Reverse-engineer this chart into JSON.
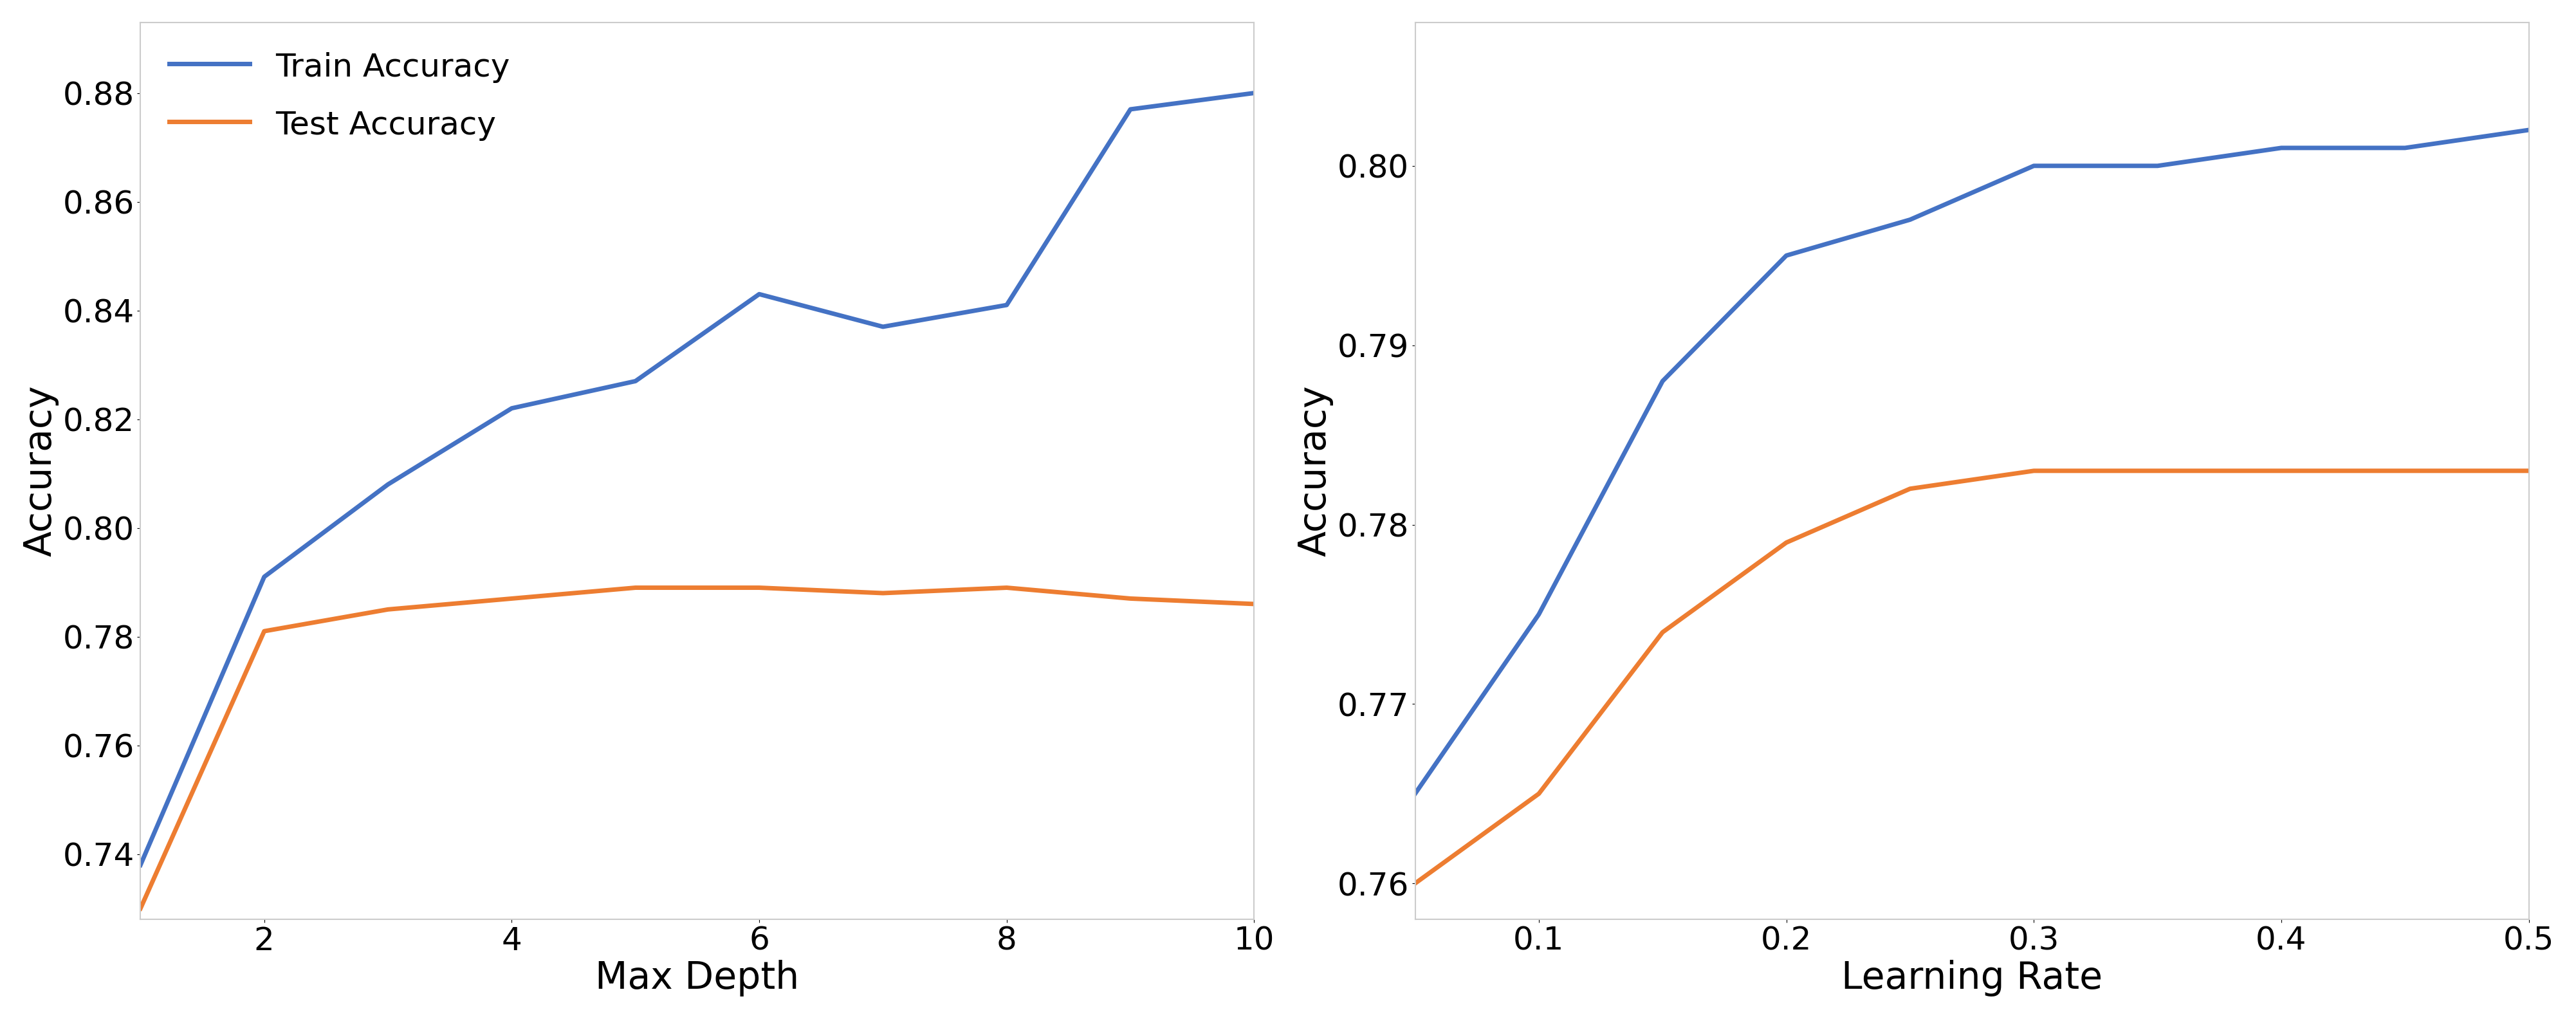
{
  "left": {
    "xlabel": "Max Depth",
    "ylabel": "Accuracy",
    "train_x": [
      1,
      2,
      3,
      4,
      5,
      6,
      7,
      8,
      9,
      10
    ],
    "train_y": [
      0.738,
      0.791,
      0.808,
      0.822,
      0.827,
      0.843,
      0.837,
      0.841,
      0.877,
      0.88
    ],
    "test_x": [
      1,
      2,
      3,
      4,
      5,
      6,
      7,
      8,
      9,
      10
    ],
    "test_y": [
      0.73,
      0.781,
      0.785,
      0.787,
      0.789,
      0.789,
      0.788,
      0.789,
      0.787,
      0.786
    ],
    "ylim": [
      0.728,
      0.893
    ],
    "xlim": [
      1,
      10
    ],
    "yticks": [
      0.74,
      0.76,
      0.78,
      0.8,
      0.82,
      0.84,
      0.86,
      0.88
    ],
    "xticks": [
      2,
      4,
      6,
      8,
      10
    ]
  },
  "right": {
    "xlabel": "Learning Rate",
    "ylabel": "Accuracy",
    "train_x": [
      0.05,
      0.1,
      0.15,
      0.2,
      0.25,
      0.3,
      0.35,
      0.4,
      0.45,
      0.5
    ],
    "train_y": [
      0.765,
      0.775,
      0.788,
      0.795,
      0.797,
      0.8,
      0.8,
      0.801,
      0.801,
      0.802
    ],
    "test_x": [
      0.05,
      0.1,
      0.15,
      0.2,
      0.25,
      0.3,
      0.35,
      0.4,
      0.45,
      0.5
    ],
    "test_y": [
      0.76,
      0.765,
      0.774,
      0.779,
      0.782,
      0.783,
      0.783,
      0.783,
      0.783,
      0.783
    ],
    "ylim": [
      0.758,
      0.808
    ],
    "xlim": [
      0.05,
      0.5
    ],
    "yticks": [
      0.76,
      0.77,
      0.78,
      0.79,
      0.8
    ],
    "xticks": [
      0.1,
      0.2,
      0.3,
      0.4,
      0.5
    ]
  },
  "train_color": "#4472C4",
  "test_color": "#ED7D31",
  "train_label": "Train Accuracy",
  "test_label": "Test Accuracy",
  "linewidth": 5.0,
  "background_color": "#ffffff",
  "legend_fontsize": 36,
  "axis_label_fontsize": 42,
  "tick_fontsize": 36,
  "spine_color": "#cccccc"
}
